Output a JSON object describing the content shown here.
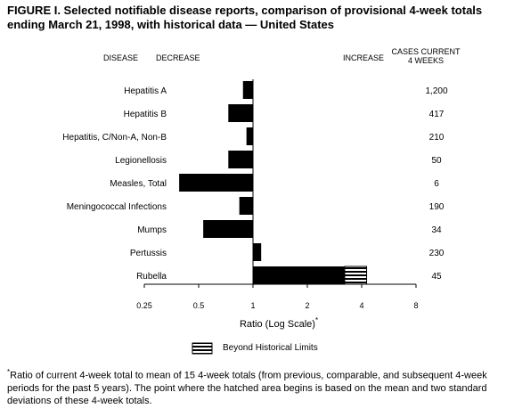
{
  "header": {
    "title_line1": "FIGURE I. Selected notifiable disease reports, comparison of provisional 4-week totals",
    "title_line2": "ending March 21, 1998, with historical data — United States"
  },
  "columns": {
    "disease": "DISEASE",
    "decrease": "DECREASE",
    "increase": "INCREASE",
    "cases_line1": "CASES CURRENT",
    "cases_line2": "4 WEEKS"
  },
  "legend": {
    "label": "Beyond Historical Limits"
  },
  "footnote": {
    "marker": "*",
    "text": "Ratio of current 4-week total to mean of 15 4-week totals (from previous, comparable, and subsequent 4-week periods for the past 5 years). The point where the hatched area begins is based on the mean and two standard deviations of these 4-week totals."
  },
  "chart_data": {
    "type": "bar",
    "orientation": "horizontal",
    "xscale": "log2",
    "xlabel": "Ratio (Log Scale)",
    "xlabel_marker": "*",
    "xlim": [
      0.25,
      8
    ],
    "x_ticks": [
      "0.25",
      "0.5",
      "1",
      "2",
      "4",
      "8"
    ],
    "x_tick_values": [
      0.25,
      0.5,
      1,
      2,
      4,
      8
    ],
    "baseline": 1,
    "grid": false,
    "categories": [
      "Hepatitis A",
      "Hepatitis B",
      "Hepatitis, C/Non-A, Non-B",
      "Legionellosis",
      "Measles, Total",
      "Meningococcal Infections",
      "Mumps",
      "Pertussis",
      "Rubella"
    ],
    "values": [
      0.88,
      0.73,
      0.92,
      0.73,
      0.39,
      0.84,
      0.53,
      1.11,
      4.26
    ],
    "historical_limit": [
      null,
      null,
      null,
      null,
      null,
      null,
      null,
      null,
      3.22
    ],
    "cases": [
      "1,200",
      "417",
      "210",
      "50",
      "6",
      "190",
      "34",
      "230",
      "45"
    ]
  }
}
